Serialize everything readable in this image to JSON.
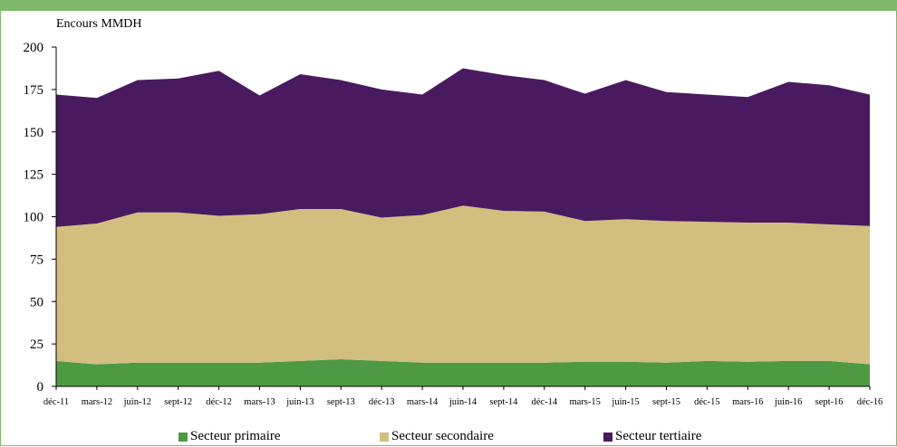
{
  "chart_data": {
    "type": "area",
    "stacked": true,
    "ylabel": "Encours MMDH",
    "ylim": [
      0,
      200
    ],
    "yticks": [
      0,
      25,
      50,
      75,
      100,
      125,
      150,
      175,
      200
    ],
    "categories": [
      "déc-11",
      "mars-12",
      "juin-12",
      "sept-12",
      "déc-12",
      "mars-13",
      "juin-13",
      "sept-13",
      "déc-13",
      "mars-14",
      "juin-14",
      "sept-14",
      "déc-14",
      "mars-15",
      "juin-15",
      "sept-15",
      "déc-15",
      "mars-16",
      "juin-16",
      "sept-16",
      "déc-16"
    ],
    "series": [
      {
        "name": "Secteur primaire",
        "color": "#4e9a43",
        "values": [
          15,
          13,
          14,
          14,
          14,
          14,
          15,
          16,
          15,
          14,
          14,
          14,
          14,
          14.5,
          14.5,
          14,
          15,
          14.5,
          15,
          15,
          13
        ]
      },
      {
        "name": "Secteur secondaire",
        "color": "#d2bf7f",
        "values": [
          79,
          83,
          88.5,
          88.5,
          86.5,
          87.5,
          89.5,
          88.5,
          84.5,
          87,
          92.5,
          89.5,
          89,
          83,
          84,
          83.5,
          82,
          82,
          81.5,
          80.5,
          81.5
        ]
      },
      {
        "name": "Secteur tertiaire",
        "color": "#4a1a60",
        "values": [
          78,
          74,
          78,
          79,
          85.5,
          70,
          79.5,
          76,
          75.5,
          71,
          81,
          80,
          77.5,
          75,
          82,
          76,
          75,
          74,
          83,
          82,
          77.5
        ]
      }
    ],
    "grid": false,
    "legend_position": "bottom"
  }
}
